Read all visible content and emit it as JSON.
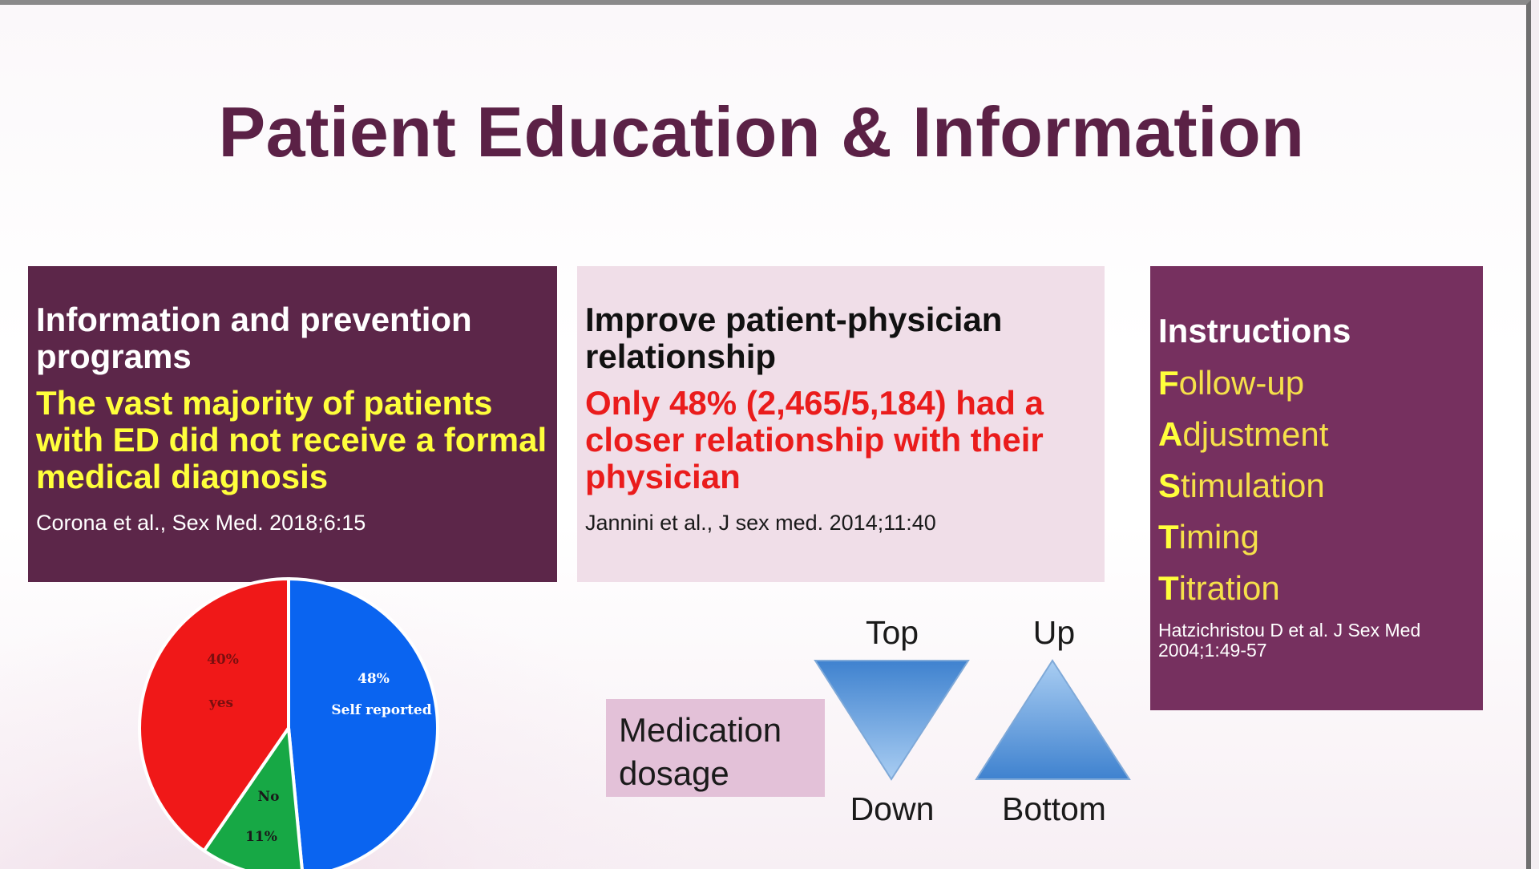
{
  "title": "Patient Education & Information",
  "left_box": {
    "heading": "Information and prevention programs",
    "highlight": "The vast majority of patients with ED did not receive a formal medical diagnosis",
    "citation": "Corona et al., Sex Med. 2018;6:15"
  },
  "middle_box": {
    "heading": "Improve patient-physician relationship",
    "highlight": "Only 48% (2,465/5,184) had a closer relationship with their physician",
    "citation": "Jannini et al., J sex med. 2014;11:40"
  },
  "right_box": {
    "heading": "Instructions",
    "items": [
      {
        "first": "F",
        "rest": "ollow-up"
      },
      {
        "first": "A",
        "rest": "djustment"
      },
      {
        "first": "S",
        "rest": "timulation"
      },
      {
        "first": "T",
        "rest": "iming"
      },
      {
        "first": "T",
        "rest": "itration"
      }
    ],
    "citation": "Hatzichristou D et al. J Sex Med 2004;1:49-57"
  },
  "pie": {
    "slices": [
      {
        "percent_label": "48%",
        "label": "Self reported",
        "value": 48,
        "color": "#0a64f0"
      },
      {
        "percent_label": "11%",
        "label": "No",
        "value": 11,
        "color": "#17a845"
      },
      {
        "percent_label": "40%",
        "label": "yes",
        "value": 40,
        "color": "#f01818"
      }
    ]
  },
  "dosage": {
    "box_label": "Medication dosage",
    "down_triangle_top": "Top",
    "down_triangle_bottom": "Down",
    "up_triangle_top": "Up",
    "up_triangle_bottom": "Bottom"
  }
}
